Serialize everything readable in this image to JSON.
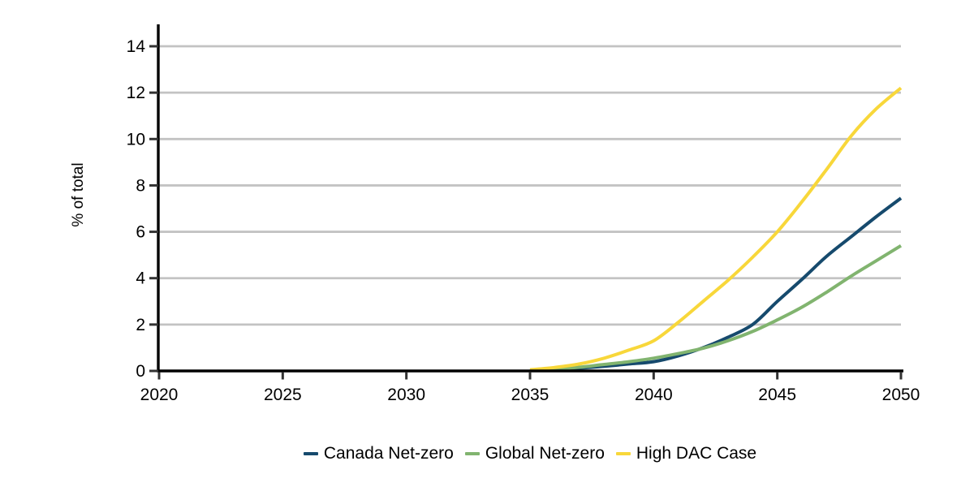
{
  "page": {
    "background": "#FFFFFF"
  },
  "chart_data": {
    "type": "line",
    "title": "",
    "xlabel": "",
    "ylabel": "% of total",
    "xlim": [
      2020,
      2050
    ],
    "ylim": [
      0,
      15
    ],
    "x_ticks": [
      2020,
      2025,
      2030,
      2035,
      2040,
      2045,
      2050
    ],
    "y_ticks": [
      0,
      2,
      4,
      6,
      8,
      10,
      12,
      14
    ],
    "grid": "horizontal-only",
    "legend_position": "bottom-center",
    "x": [
      2035,
      2036,
      2037,
      2038,
      2039,
      2040,
      2041,
      2042,
      2043,
      2044,
      2045,
      2046,
      2047,
      2048,
      2049,
      2050
    ],
    "series": [
      {
        "name": "Canada Net-zero",
        "color": "#164A6D",
        "values": [
          0.02,
          0.06,
          0.12,
          0.2,
          0.3,
          0.4,
          0.65,
          1.0,
          1.45,
          2.0,
          3.0,
          3.95,
          4.95,
          5.8,
          6.65,
          7.45
        ]
      },
      {
        "name": "Global Net-zero",
        "color": "#81B46F",
        "values": [
          0.03,
          0.08,
          0.16,
          0.28,
          0.4,
          0.55,
          0.75,
          0.98,
          1.3,
          1.7,
          2.2,
          2.75,
          3.4,
          4.1,
          4.75,
          5.4
        ]
      },
      {
        "name": "High DAC Case",
        "color": "#F8D73A",
        "values": [
          0.05,
          0.15,
          0.3,
          0.55,
          0.9,
          1.3,
          2.1,
          3.0,
          3.9,
          4.9,
          6.0,
          7.3,
          8.7,
          10.15,
          11.3,
          12.2
        ]
      }
    ],
    "axis_color": "#000000",
    "grid_color": "#C3C3C3",
    "tick_color": "#333333",
    "text_color": "#000000"
  }
}
